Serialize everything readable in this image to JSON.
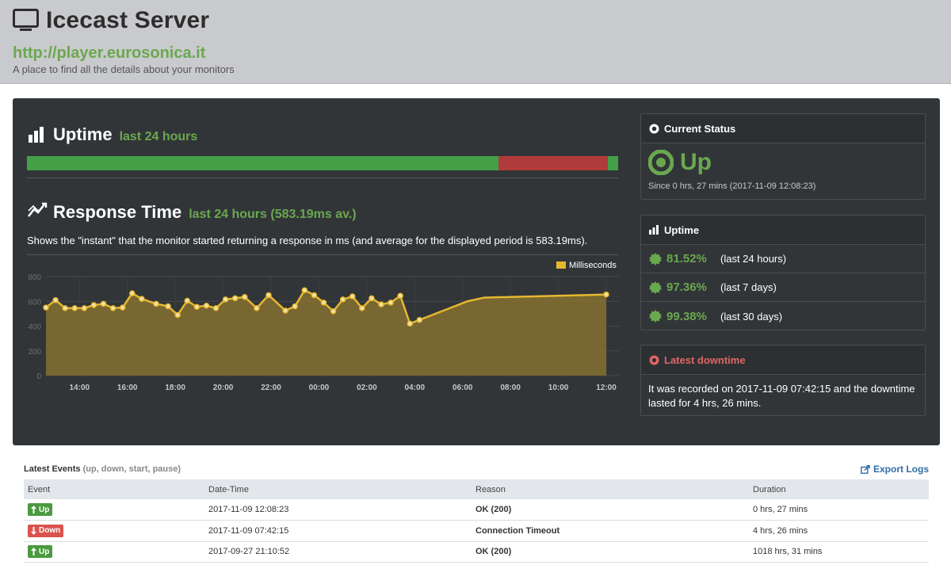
{
  "header": {
    "title": "Icecast Server",
    "url": "http://player.eurosonica.it",
    "tagline": "A place to find all the details about your monitors"
  },
  "uptime_section": {
    "title": "Uptime",
    "subtitle": "last 24 hours",
    "bar_segments": [
      {
        "status": "up",
        "fraction": 0.797,
        "color": "#43a047"
      },
      {
        "status": "down",
        "fraction": 0.185,
        "color": "#b03b3b"
      },
      {
        "status": "up",
        "fraction": 0.018,
        "color": "#43a047"
      }
    ]
  },
  "response_section": {
    "title": "Response Time",
    "subtitle": "last 24 hours (583.19ms av.)",
    "description": "Shows the \"instant\" that the monitor started returning a response in ms (and average for the displayed period is 583.19ms)."
  },
  "chart_data": {
    "type": "area",
    "legend": [
      "Milliseconds"
    ],
    "legend_position": "top-right",
    "ylim": [
      0,
      800
    ],
    "y_ticks": [
      "0",
      "200",
      "400",
      "600",
      "800"
    ],
    "x_ticks": [
      "14:00",
      "16:00",
      "18:00",
      "20:00",
      "22:00",
      "00:00",
      "02:00",
      "04:00",
      "06:00",
      "08:00",
      "10:00",
      "12:00"
    ],
    "grid": true,
    "series": [
      {
        "name": "Milliseconds",
        "color": "#e6b830",
        "fill": "#7d6a32",
        "x": [
          12.6,
          13.0,
          13.4,
          13.8,
          14.2,
          14.6,
          15.0,
          15.4,
          15.8,
          16.2,
          16.6,
          17.2,
          17.7,
          18.1,
          18.5,
          18.9,
          19.3,
          19.7,
          20.1,
          20.5,
          20.9,
          21.4,
          21.9,
          22.6,
          23.0,
          23.4,
          23.8,
          24.2,
          24.6,
          25.0,
          25.4,
          25.8,
          26.2,
          26.6,
          27.0,
          27.4,
          27.8,
          28.2,
          28.6,
          29.0,
          29.4,
          29.8,
          30.2,
          30.9,
          36.0
        ],
        "values": [
          550,
          610,
          545,
          545,
          545,
          570,
          580,
          545,
          550,
          665,
          620,
          580,
          560,
          490,
          605,
          555,
          565,
          545,
          615,
          625,
          635,
          545,
          650,
          525,
          560,
          690,
          650,
          590,
          520,
          615,
          640,
          545,
          625,
          575,
          590,
          645,
          420,
          450,
          480,
          510,
          540,
          570,
          600,
          630,
          655
        ]
      }
    ]
  },
  "current_status": {
    "heading": "Current Status",
    "status": "Up",
    "since": "Since 0 hrs, 27 mins (2017-11-09 12:08:23)"
  },
  "uptime_card": {
    "heading": "Uptime",
    "rows": [
      {
        "pct": "81.52%",
        "period": "(last 24 hours)"
      },
      {
        "pct": "97.36%",
        "period": "(last 7 days)"
      },
      {
        "pct": "99.38%",
        "period": "(last 30 days)"
      }
    ]
  },
  "downtime_card": {
    "heading": "Latest downtime",
    "text": "It was recorded on 2017-11-09 07:42:15 and the downtime lasted for 4 hrs, 26 mins."
  },
  "events": {
    "title": "Latest Events",
    "hint": "(up, down, start, pause)",
    "export_label": "Export Logs",
    "columns": [
      "Event",
      "Date-Time",
      "Reason",
      "Duration"
    ],
    "rows": [
      {
        "event": "Up",
        "type": "up",
        "datetime": "2017-11-09 12:08:23",
        "reason": "OK (200)",
        "duration": "0 hrs, 27 mins"
      },
      {
        "event": "Down",
        "type": "down",
        "datetime": "2017-11-09 07:42:15",
        "reason": "Connection Timeout",
        "duration": "4 hrs, 26 mins"
      },
      {
        "event": "Up",
        "type": "up",
        "datetime": "2017-09-27 21:10:52",
        "reason": "OK (200)",
        "duration": "1018 hrs, 31 mins"
      }
    ]
  }
}
